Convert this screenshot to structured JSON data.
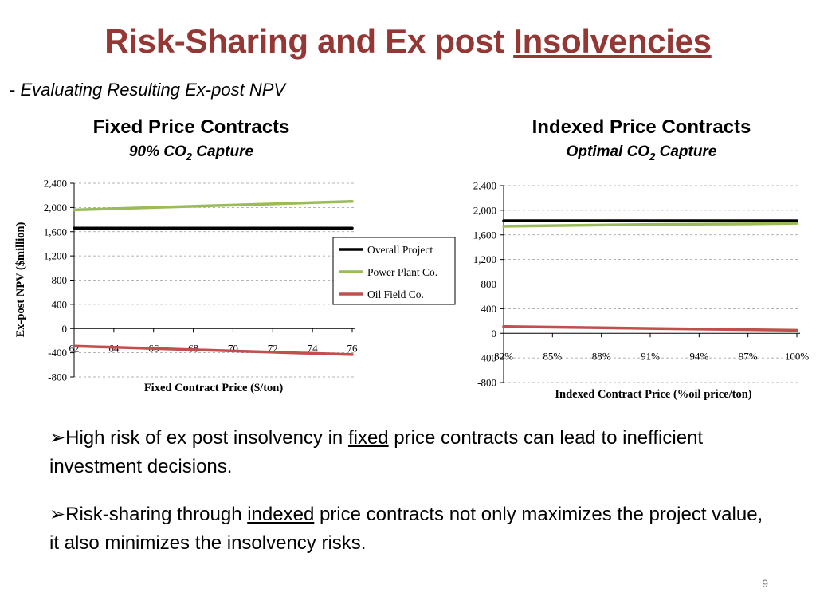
{
  "slide": {
    "title_prefix": "Risk-Sharing and Ex post ",
    "title_underlined": "Insolvencies",
    "subtitle_dash": "- ",
    "subtitle": "Evaluating Resulting Ex-post NPV",
    "page_number": "9"
  },
  "chart_headers": {
    "left": {
      "title": "Fixed Price Contracts",
      "sub_prefix": "90% CO",
      "sub_subscript": "2",
      "sub_suffix": " Capture"
    },
    "right": {
      "title": "Indexed Price Contracts",
      "sub_prefix": "Optimal CO",
      "sub_subscript": "2",
      "sub_suffix": " Capture"
    }
  },
  "bullets": [
    {
      "marker": "➢",
      "before": "High risk of ex post insolvency in ",
      "underlined": "fixed",
      "after": " price contracts can lead to inefficient investment decisions."
    },
    {
      "marker": "➢",
      "before": "Risk-sharing through ",
      "underlined": "indexed",
      "after": " price contracts not only maximizes the project value, it also minimizes the insolvency risks."
    }
  ],
  "chart_data": [
    {
      "type": "line",
      "title": "",
      "xlabel": "Fixed Contract Price ($/ton)",
      "ylabel": "Ex-post NPV ($million)",
      "x": [
        62,
        64,
        66,
        68,
        70,
        72,
        74,
        76
      ],
      "x_tick_labels": [
        "62",
        "64",
        "66",
        "68",
        "70",
        "72",
        "74",
        "76"
      ],
      "ylim": [
        -800,
        2400
      ],
      "y_ticks": [
        -800,
        -400,
        0,
        400,
        800,
        1200,
        1600,
        2000,
        2400
      ],
      "y_tick_labels": [
        "-800",
        "-400",
        "0",
        "400",
        "800",
        "1,200",
        "1,600",
        "2,000",
        "2,400"
      ],
      "grid": "horizontal dashed",
      "legend": "right",
      "series": [
        {
          "name": "Overall Project",
          "color": "#000000",
          "values": [
            1660,
            1660,
            1660,
            1660,
            1660,
            1660,
            1660,
            1660
          ]
        },
        {
          "name": "Power Plant Co.",
          "color": "#9BBB59",
          "values": [
            1960,
            1980,
            2000,
            2020,
            2040,
            2060,
            2080,
            2100
          ]
        },
        {
          "name": "Oil Field Co.",
          "color": "#C0504D",
          "values": [
            -290,
            -310,
            -330,
            -350,
            -370,
            -390,
            -410,
            -430
          ]
        }
      ]
    },
    {
      "type": "line",
      "title": "",
      "xlabel": "Indexed Contract Price (%oil price/ton)",
      "ylabel": "",
      "x": [
        82,
        85,
        88,
        91,
        94,
        97,
        100
      ],
      "x_tick_labels": [
        "82%",
        "85%",
        "88%",
        "91%",
        "94%",
        "97%",
        "100%"
      ],
      "ylim": [
        -800,
        2400
      ],
      "y_ticks": [
        -800,
        -400,
        0,
        400,
        800,
        1200,
        1600,
        2000,
        2400
      ],
      "y_tick_labels": [
        "-800",
        "-400",
        "0",
        "400",
        "800",
        "1,200",
        "1,600",
        "2,000",
        "2,400"
      ],
      "grid": "horizontal dashed",
      "legend": "none",
      "series": [
        {
          "name": "Overall Project",
          "color": "#000000",
          "values": [
            1830,
            1830,
            1830,
            1830,
            1830,
            1830,
            1830
          ]
        },
        {
          "name": "Power Plant Co.",
          "color": "#9BBB59",
          "values": [
            1740,
            1750,
            1760,
            1770,
            1775,
            1780,
            1790
          ]
        },
        {
          "name": "Oil Field Co.",
          "color": "#C0504D",
          "values": [
            110,
            100,
            90,
            80,
            70,
            60,
            50
          ]
        }
      ]
    }
  ]
}
